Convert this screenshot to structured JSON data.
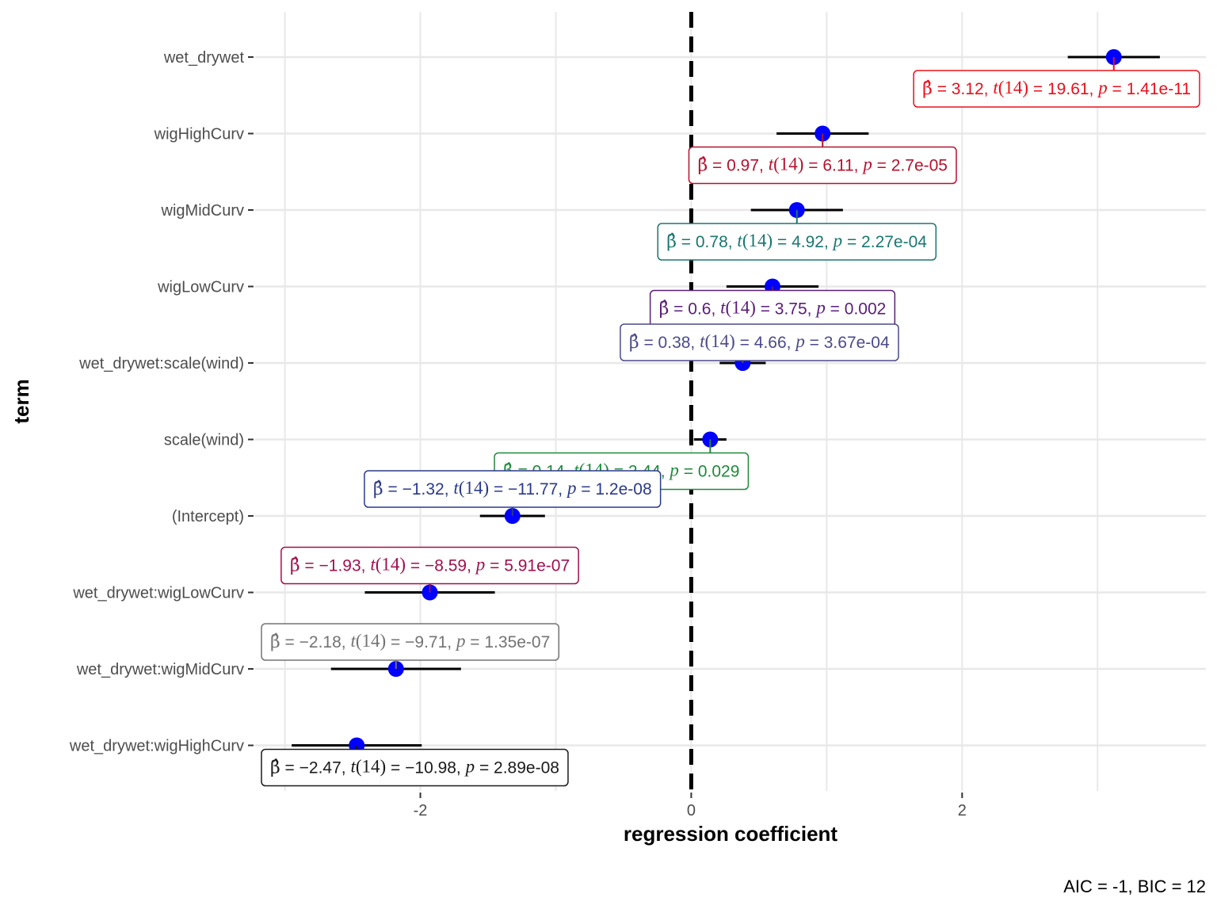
{
  "chart_data": {
    "type": "scatter",
    "subtype": "coefficient dot-and-whisker plot",
    "xlabel": "regression coefficient",
    "ylabel": "term",
    "xlim": [
      -3.22,
      3.8
    ],
    "x_ticks": [
      -2,
      0,
      2
    ],
    "x_tick_labels": [
      "-2",
      "0",
      "2"
    ],
    "x_minor_gridlines": [
      -3,
      -1,
      1,
      3
    ],
    "reference_line": {
      "x": 0,
      "style": "dashed"
    },
    "point_color": "#0000FF",
    "caption": "AIC = -1, BIC = 12",
    "grid": true,
    "terms": [
      {
        "term": "wet_drywet",
        "estimate": 3.12,
        "conf_low": 2.78,
        "conf_high": 3.46,
        "df": 14,
        "t": "19.61",
        "p": "1.41e-11",
        "color": "#E8101A"
      },
      {
        "term": "wigHighCurv",
        "estimate": 0.97,
        "conf_low": 0.63,
        "conf_high": 1.31,
        "df": 14,
        "t": "6.11",
        "p": "2.7e-05",
        "color": "#B5122D"
      },
      {
        "term": "wigMidCurv",
        "estimate": 0.78,
        "conf_low": 0.44,
        "conf_high": 1.12,
        "df": 14,
        "t": "4.92",
        "p": "2.27e-04",
        "color": "#1A7670"
      },
      {
        "term": "wigLowCurv",
        "estimate": 0.6,
        "conf_low": 0.26,
        "conf_high": 0.94,
        "df": 14,
        "t": "3.75",
        "p": "0.002",
        "color": "#5A1D78"
      },
      {
        "term": "wet_drywet:scale(wind)",
        "estimate": 0.38,
        "conf_low": 0.21,
        "conf_high": 0.55,
        "df": 14,
        "t": "4.66",
        "p": "3.67e-04",
        "color": "#4A4A8C"
      },
      {
        "term": "scale(wind)",
        "estimate": 0.14,
        "conf_low": 0.02,
        "conf_high": 0.26,
        "df": 14,
        "t": "2.44",
        "p": "0.029",
        "color": "#1E8A3A"
      },
      {
        "term": "(Intercept)",
        "estimate": -1.32,
        "conf_low": -1.56,
        "conf_high": -1.08,
        "df": 14,
        "t": "-11.77",
        "p": "1.2e-08",
        "color": "#2B3A8A"
      },
      {
        "term": "wet_drywet:wigLowCurv",
        "estimate": -1.93,
        "conf_low": -2.41,
        "conf_high": -1.45,
        "df": 14,
        "t": "-8.59",
        "p": "5.91e-07",
        "color": "#A0104E"
      },
      {
        "term": "wet_drywet:wigMidCurv",
        "estimate": -2.18,
        "conf_low": -2.66,
        "conf_high": -1.7,
        "df": 14,
        "t": "-9.71",
        "p": "1.35e-07",
        "color": "#737373"
      },
      {
        "term": "wet_drywet:wigHighCurv",
        "estimate": -2.47,
        "conf_low": -2.95,
        "conf_high": -1.99,
        "df": 14,
        "t": "-10.98",
        "p": "2.89e-08",
        "color": "#1A1A1A"
      }
    ]
  }
}
